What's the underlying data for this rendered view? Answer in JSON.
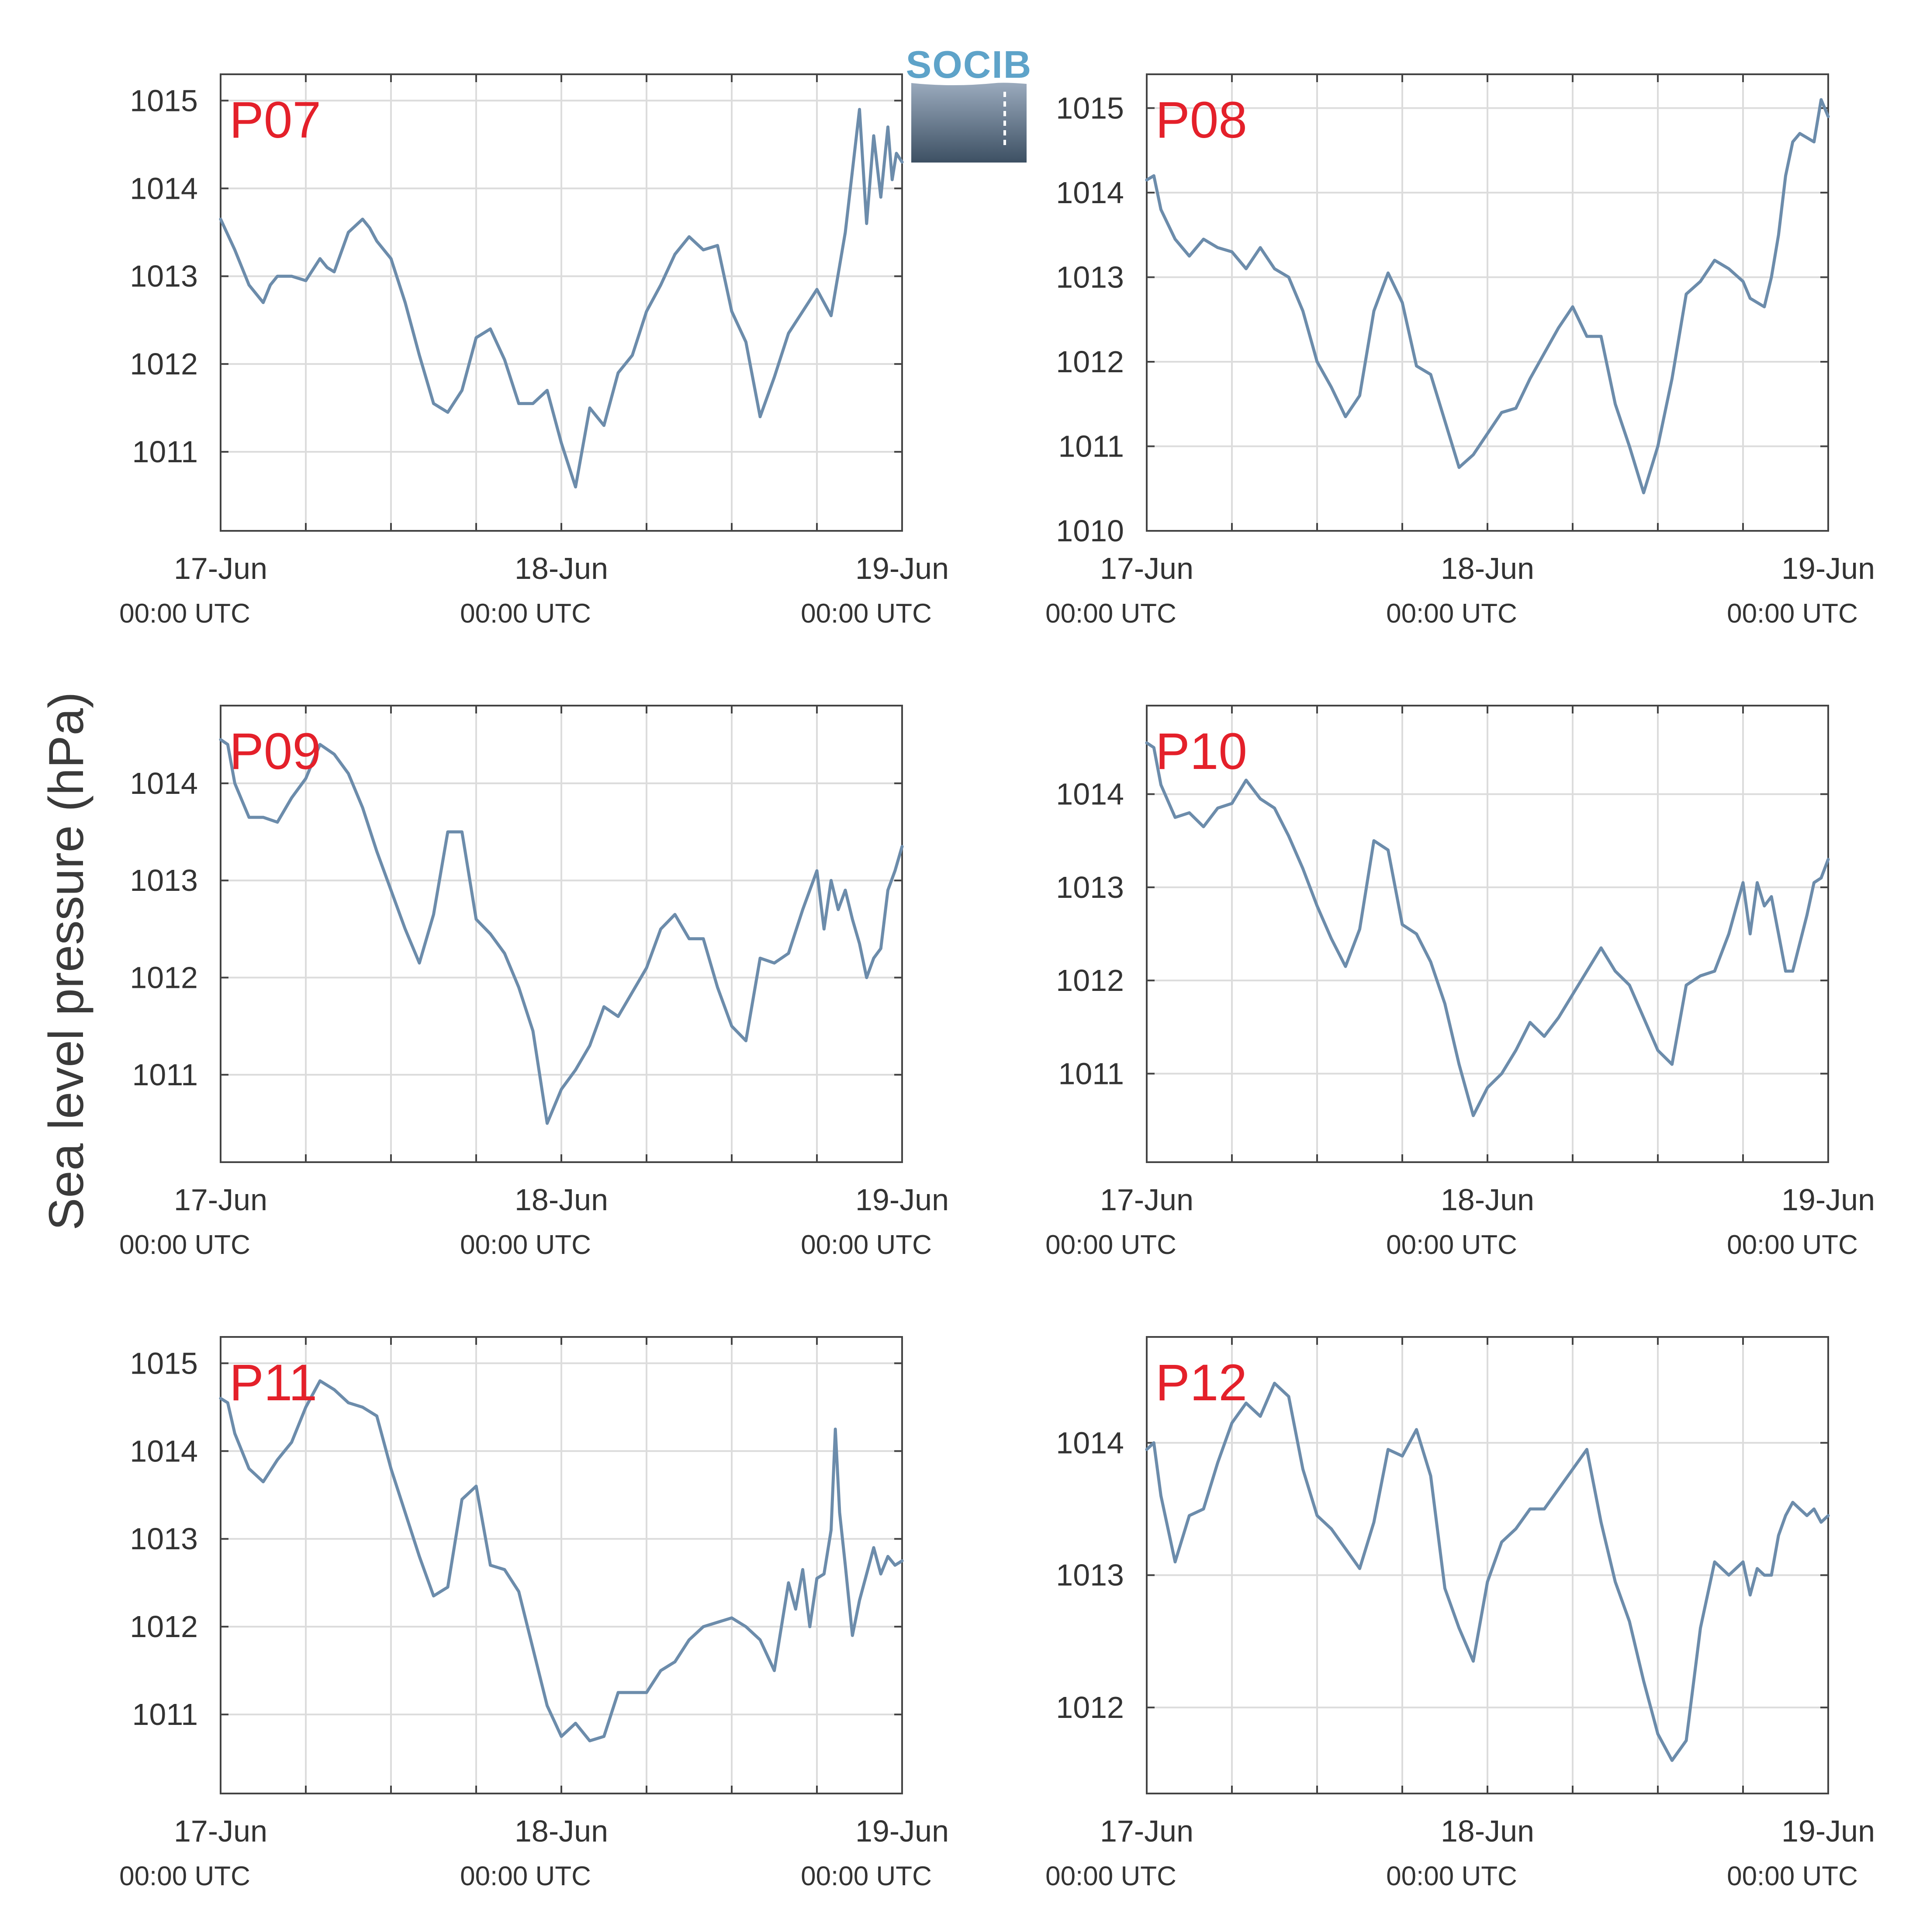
{
  "ylabel": "Sea level pressure (hPa)",
  "logo": {
    "text": "SOCIB"
  },
  "colors": {
    "series": "#6c8cab",
    "label": "#e4202a",
    "grid": "#dcdcdc",
    "frame": "#444444"
  },
  "chart_data": [
    {
      "type": "line",
      "label": "P07",
      "x_ticks": [
        [
          "17-Jun",
          "00:00 UTC"
        ],
        [
          "18-Jun",
          "00:00 UTC"
        ],
        [
          "19-Jun",
          "00:00 UTC"
        ]
      ],
      "x_range_hours": [
        0,
        48
      ],
      "ylim": [
        1010.1,
        1015.3
      ],
      "y_ticks": [
        1011,
        1012,
        1013,
        1014,
        1015
      ],
      "grid": true,
      "series": [
        {
          "x": [
            0,
            1,
            2,
            3,
            3.5,
            4,
            5,
            6,
            7,
            7.5,
            8,
            9,
            10,
            10.5,
            11,
            12,
            13,
            13.5,
            14,
            15,
            16,
            17,
            18,
            19,
            20,
            21,
            22,
            23,
            24,
            25,
            26,
            27,
            28,
            29,
            30,
            31,
            32,
            33,
            34,
            35,
            36,
            37,
            38,
            39,
            40,
            41,
            42,
            43,
            44,
            45,
            45.5,
            46,
            46.5,
            47,
            47.3,
            47.6,
            48
          ],
          "y": [
            1013.65,
            1013.3,
            1012.9,
            1012.7,
            1012.9,
            1013.0,
            1013.0,
            1012.95,
            1013.2,
            1013.1,
            1013.05,
            1013.5,
            1013.65,
            1013.55,
            1013.4,
            1013.2,
            1012.7,
            1012.4,
            1012.1,
            1011.55,
            1011.45,
            1011.7,
            1012.3,
            1012.4,
            1012.05,
            1011.55,
            1011.55,
            1011.7,
            1011.1,
            1010.6,
            1011.5,
            1011.3,
            1011.9,
            1012.1,
            1012.6,
            1012.9,
            1013.25,
            1013.45,
            1013.3,
            1013.35,
            1012.6,
            1012.25,
            1011.4,
            1011.85,
            1012.35,
            1012.6,
            1012.85,
            1012.55,
            1013.5,
            1014.9,
            1013.6,
            1014.6,
            1013.9,
            1014.7,
            1014.1,
            1014.4,
            1014.3
          ]
        }
      ]
    },
    {
      "type": "line",
      "label": "P08",
      "x_ticks": [
        [
          "17-Jun",
          "00:00 UTC"
        ],
        [
          "18-Jun",
          "00:00 UTC"
        ],
        [
          "19-Jun",
          "00:00 UTC"
        ]
      ],
      "x_range_hours": [
        0,
        48
      ],
      "ylim": [
        1010.0,
        1015.4
      ],
      "y_ticks": [
        1010,
        1011,
        1012,
        1013,
        1014,
        1015
      ],
      "grid": true,
      "series": [
        {
          "x": [
            0,
            0.5,
            1,
            2,
            3,
            4,
            5,
            6,
            7,
            8,
            9,
            10,
            11,
            12,
            13,
            14,
            15,
            16,
            17,
            18,
            19,
            20,
            21,
            22,
            23,
            24,
            25,
            26,
            27,
            28,
            29,
            30,
            31,
            32,
            33,
            34,
            35,
            36,
            37,
            38,
            39,
            40,
            41,
            42,
            42.5,
            43,
            43.5,
            44,
            44.5,
            45,
            45.5,
            46,
            47,
            47.5,
            48
          ],
          "y": [
            1014.15,
            1014.2,
            1013.8,
            1013.45,
            1013.25,
            1013.45,
            1013.35,
            1013.3,
            1013.1,
            1013.35,
            1013.1,
            1013.0,
            1012.6,
            1012.0,
            1011.7,
            1011.35,
            1011.6,
            1012.6,
            1013.05,
            1012.7,
            1011.95,
            1011.85,
            1011.3,
            1010.75,
            1010.9,
            1011.15,
            1011.4,
            1011.45,
            1011.8,
            1012.1,
            1012.4,
            1012.65,
            1012.3,
            1012.3,
            1011.5,
            1011.0,
            1010.45,
            1011.0,
            1011.8,
            1012.8,
            1012.95,
            1013.2,
            1013.1,
            1012.95,
            1012.75,
            1012.7,
            1012.65,
            1013.0,
            1013.5,
            1014.2,
            1014.6,
            1014.7,
            1014.6,
            1015.1,
            1014.9
          ]
        }
      ]
    },
    {
      "type": "line",
      "label": "P09",
      "x_ticks": [
        [
          "17-Jun",
          "00:00 UTC"
        ],
        [
          "18-Jun",
          "00:00 UTC"
        ],
        [
          "19-Jun",
          "00:00 UTC"
        ]
      ],
      "x_range_hours": [
        0,
        48
      ],
      "ylim": [
        1010.1,
        1014.8
      ],
      "y_ticks": [
        1011,
        1012,
        1013,
        1014
      ],
      "grid": true,
      "series": [
        {
          "x": [
            0,
            0.5,
            1,
            2,
            3,
            4,
            5,
            6,
            7,
            8,
            9,
            10,
            11,
            12,
            13,
            14,
            15,
            16,
            17,
            18,
            19,
            20,
            21,
            22,
            23,
            24,
            25,
            26,
            27,
            28,
            29,
            30,
            31,
            32,
            33,
            34,
            35,
            36,
            37,
            38,
            39,
            40,
            41,
            42,
            42.5,
            43,
            43.5,
            44,
            44.5,
            45,
            45.5,
            46,
            46.5,
            47,
            47.5,
            48
          ],
          "y": [
            1014.45,
            1014.4,
            1014.0,
            1013.65,
            1013.65,
            1013.6,
            1013.85,
            1014.05,
            1014.4,
            1014.3,
            1014.1,
            1013.75,
            1013.3,
            1012.9,
            1012.5,
            1012.15,
            1012.65,
            1013.5,
            1013.5,
            1012.6,
            1012.45,
            1012.25,
            1011.9,
            1011.45,
            1010.5,
            1010.85,
            1011.05,
            1011.3,
            1011.7,
            1011.6,
            1011.85,
            1012.1,
            1012.5,
            1012.65,
            1012.4,
            1012.4,
            1011.9,
            1011.5,
            1011.35,
            1012.2,
            1012.15,
            1012.25,
            1012.7,
            1013.1,
            1012.5,
            1013.0,
            1012.7,
            1012.9,
            1012.6,
            1012.35,
            1012.0,
            1012.2,
            1012.3,
            1012.9,
            1013.1,
            1013.35
          ]
        }
      ]
    },
    {
      "type": "line",
      "label": "P10",
      "x_ticks": [
        [
          "17-Jun",
          "00:00 UTC"
        ],
        [
          "18-Jun",
          "00:00 UTC"
        ],
        [
          "19-Jun",
          "00:00 UTC"
        ]
      ],
      "x_range_hours": [
        0,
        48
      ],
      "ylim": [
        1010.05,
        1014.95
      ],
      "y_ticks": [
        1011,
        1012,
        1013,
        1014
      ],
      "grid": true,
      "series": [
        {
          "x": [
            0,
            0.5,
            1,
            2,
            3,
            4,
            5,
            6,
            7,
            8,
            9,
            10,
            11,
            12,
            13,
            14,
            15,
            16,
            17,
            18,
            19,
            20,
            21,
            22,
            23,
            24,
            25,
            26,
            27,
            28,
            29,
            30,
            31,
            32,
            33,
            34,
            35,
            36,
            37,
            38,
            39,
            40,
            41,
            42,
            42.5,
            43,
            43.5,
            44,
            44.5,
            45,
            45.5,
            46,
            46.5,
            47,
            47.5,
            48
          ],
          "y": [
            1014.55,
            1014.5,
            1014.1,
            1013.75,
            1013.8,
            1013.65,
            1013.85,
            1013.9,
            1014.15,
            1013.95,
            1013.85,
            1013.55,
            1013.2,
            1012.8,
            1012.45,
            1012.15,
            1012.55,
            1013.5,
            1013.4,
            1012.6,
            1012.5,
            1012.2,
            1011.75,
            1011.1,
            1010.55,
            1010.85,
            1011.0,
            1011.25,
            1011.55,
            1011.4,
            1011.6,
            1011.85,
            1012.1,
            1012.35,
            1012.1,
            1011.95,
            1011.6,
            1011.25,
            1011.1,
            1011.95,
            1012.05,
            1012.1,
            1012.5,
            1013.05,
            1012.5,
            1013.05,
            1012.8,
            1012.9,
            1012.5,
            1012.1,
            1012.1,
            1012.4,
            1012.7,
            1013.05,
            1013.1,
            1013.3
          ]
        }
      ]
    },
    {
      "type": "line",
      "label": "P11",
      "x_ticks": [
        [
          "17-Jun",
          "00:00 UTC"
        ],
        [
          "18-Jun",
          "00:00 UTC"
        ],
        [
          "19-Jun",
          "00:00 UTC"
        ]
      ],
      "x_range_hours": [
        0,
        48
      ],
      "ylim": [
        1010.1,
        1015.3
      ],
      "y_ticks": [
        1011,
        1012,
        1013,
        1014,
        1015
      ],
      "grid": true,
      "series": [
        {
          "x": [
            0,
            0.5,
            1,
            2,
            3,
            4,
            5,
            6,
            7,
            8,
            9,
            10,
            11,
            12,
            13,
            14,
            15,
            16,
            17,
            18,
            19,
            20,
            21,
            22,
            23,
            24,
            25,
            26,
            27,
            28,
            29,
            30,
            31,
            32,
            33,
            34,
            35,
            36,
            37,
            38,
            39,
            40,
            40.5,
            41,
            41.5,
            42,
            42.5,
            43,
            43.3,
            43.6,
            44,
            44.5,
            45,
            45.5,
            46,
            46.5,
            47,
            47.5,
            48
          ],
          "y": [
            1014.6,
            1014.55,
            1014.2,
            1013.8,
            1013.65,
            1013.9,
            1014.1,
            1014.5,
            1014.8,
            1014.7,
            1014.55,
            1014.5,
            1014.4,
            1013.8,
            1013.3,
            1012.8,
            1012.35,
            1012.45,
            1013.45,
            1013.6,
            1012.7,
            1012.65,
            1012.4,
            1011.75,
            1011.1,
            1010.75,
            1010.9,
            1010.7,
            1010.75,
            1011.25,
            1011.25,
            1011.25,
            1011.5,
            1011.6,
            1011.85,
            1012.0,
            1012.05,
            1012.1,
            1012.0,
            1011.85,
            1011.5,
            1012.5,
            1012.2,
            1012.65,
            1012.0,
            1012.55,
            1012.6,
            1013.1,
            1014.25,
            1013.3,
            1012.7,
            1011.9,
            1012.3,
            1012.6,
            1012.9,
            1012.6,
            1012.8,
            1012.7,
            1012.75
          ]
        }
      ]
    },
    {
      "type": "line",
      "label": "P12",
      "x_ticks": [
        [
          "17-Jun",
          "00:00 UTC"
        ],
        [
          "18-Jun",
          "00:00 UTC"
        ],
        [
          "19-Jun",
          "00:00 UTC"
        ]
      ],
      "x_range_hours": [
        0,
        48
      ],
      "ylim": [
        1011.35,
        1014.8
      ],
      "y_ticks": [
        1012,
        1013,
        1014
      ],
      "grid": true,
      "series": [
        {
          "x": [
            0,
            0.5,
            1,
            2,
            3,
            4,
            5,
            6,
            7,
            8,
            9,
            10,
            11,
            12,
            13,
            14,
            15,
            16,
            17,
            18,
            19,
            20,
            21,
            22,
            23,
            24,
            25,
            26,
            27,
            28,
            29,
            30,
            31,
            32,
            33,
            34,
            35,
            36,
            37,
            38,
            39,
            40,
            41,
            42,
            42.5,
            43,
            43.5,
            44,
            44.5,
            45,
            45.5,
            46,
            46.5,
            47,
            47.5,
            48
          ],
          "y": [
            1013.95,
            1014.0,
            1013.6,
            1013.1,
            1013.45,
            1013.5,
            1013.85,
            1014.15,
            1014.3,
            1014.2,
            1014.45,
            1014.35,
            1013.8,
            1013.45,
            1013.35,
            1013.2,
            1013.05,
            1013.4,
            1013.95,
            1013.9,
            1014.1,
            1013.75,
            1012.9,
            1012.6,
            1012.35,
            1012.95,
            1013.25,
            1013.35,
            1013.5,
            1013.5,
            1013.65,
            1013.8,
            1013.95,
            1013.4,
            1012.95,
            1012.65,
            1012.2,
            1011.8,
            1011.6,
            1011.75,
            1012.6,
            1013.1,
            1013.0,
            1013.1,
            1012.85,
            1013.05,
            1013.0,
            1013.0,
            1013.3,
            1013.45,
            1013.55,
            1013.5,
            1013.45,
            1013.5,
            1013.4,
            1013.45
          ]
        }
      ]
    }
  ]
}
